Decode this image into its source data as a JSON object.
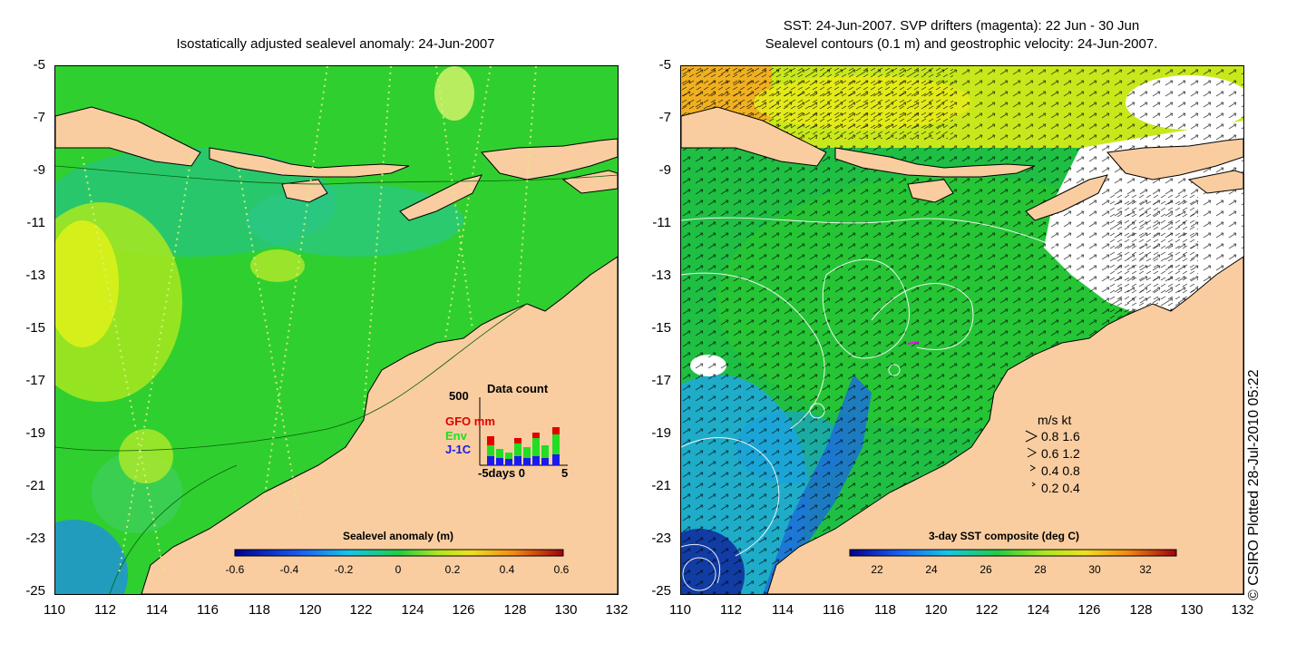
{
  "left": {
    "title": "Isostatically adjusted sealevel anomaly: 24-Jun-2007",
    "y_ticks": [
      "-5",
      "-7",
      "-9",
      "-11",
      "-13",
      "-15",
      "-17",
      "-19",
      "-21",
      "-23",
      "-25"
    ],
    "x_ticks": [
      "110",
      "112",
      "114",
      "116",
      "118",
      "120",
      "122",
      "124",
      "126",
      "128",
      "130",
      "132"
    ],
    "colorbar": {
      "label": "Sealevel anomaly (m)",
      "ticks": [
        "-0.6",
        "-0.4",
        "-0.2",
        "0",
        "0.2",
        "0.4",
        "0.6"
      ]
    },
    "data_count": {
      "title": "Data count",
      "y_max": "500",
      "series": [
        {
          "name": "GFO mm",
          "color": "#e00000"
        },
        {
          "name": "Env",
          "color": "#22dd22"
        },
        {
          "name": "J-1C",
          "color": "#1a1aee"
        }
      ],
      "x_label": "-5days 0",
      "x_end": "5"
    }
  },
  "right": {
    "title_line1": "SST: 24-Jun-2007. SVP drifters (magenta): 22 Jun - 30 Jun",
    "title_line2": "Sealevel contours (0.1 m) and geostrophic velocity: 24-Jun-2007.",
    "y_ticks": [
      "-5",
      "-7",
      "-9",
      "-11",
      "-13",
      "-15",
      "-17",
      "-19",
      "-21",
      "-23",
      "-25"
    ],
    "x_ticks": [
      "110",
      "112",
      "114",
      "116",
      "118",
      "120",
      "122",
      "124",
      "126",
      "128",
      "130",
      "132"
    ],
    "colorbar": {
      "label": "3-day SST composite (deg C)",
      "ticks": [
        "22",
        "24",
        "26",
        "28",
        "30",
        "32"
      ]
    },
    "velocity_legend": {
      "header": "m/s  kt",
      "rows": [
        "0.8  1.6",
        "0.6  1.2",
        "0.4  0.8",
        "0.2  0.4"
      ]
    }
  },
  "copyright": "© CSIRO Plotted 28-Jul-2010 05:22",
  "colors": {
    "land": "#f9cda0",
    "ocean_green": "#22cc22",
    "ocean_teal": "#1fbf7a",
    "ocean_blue": "#1c6fd6",
    "ocean_yellow": "#ccee22"
  }
}
